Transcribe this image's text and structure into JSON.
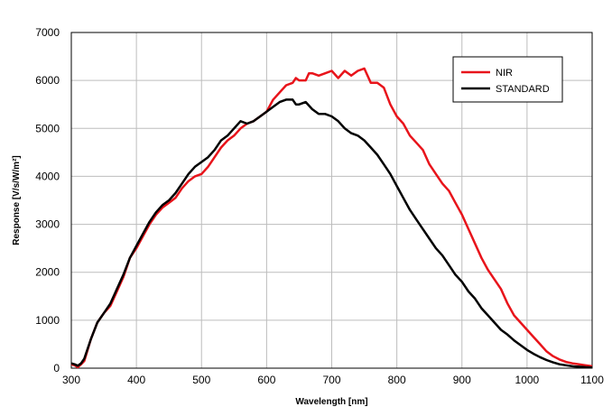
{
  "chart_data": {
    "type": "line",
    "title": "",
    "xlabel": "Wavelength [nm]",
    "ylabel": "Response [V/s/W/m²]",
    "xlim": [
      300,
      1100
    ],
    "ylim": [
      0,
      7000
    ],
    "x_ticks": [
      "300",
      "400",
      "500",
      "600",
      "700",
      "800",
      "900",
      "1000",
      "1100"
    ],
    "y_ticks": [
      "0",
      "1000",
      "2000",
      "3000",
      "4000",
      "5000",
      "6000",
      "7000"
    ],
    "grid": true,
    "legend_position": "top-right",
    "series": [
      {
        "name": "NIR",
        "color": "#e8141b",
        "x": [
          300,
          305,
          310,
          315,
          320,
          330,
          340,
          350,
          360,
          370,
          380,
          390,
          400,
          410,
          420,
          430,
          440,
          450,
          460,
          470,
          480,
          490,
          500,
          510,
          520,
          530,
          540,
          550,
          560,
          570,
          580,
          590,
          600,
          610,
          620,
          630,
          640,
          645,
          650,
          660,
          665,
          670,
          680,
          690,
          700,
          710,
          720,
          730,
          740,
          750,
          760,
          770,
          780,
          790,
          800,
          810,
          820,
          830,
          840,
          850,
          860,
          870,
          880,
          890,
          900,
          910,
          920,
          930,
          940,
          950,
          960,
          970,
          980,
          990,
          1000,
          1010,
          1020,
          1030,
          1040,
          1050,
          1060,
          1070,
          1080,
          1090,
          1100
        ],
        "y": [
          80,
          60,
          20,
          80,
          150,
          600,
          950,
          1150,
          1300,
          1600,
          1900,
          2300,
          2500,
          2750,
          3000,
          3200,
          3350,
          3450,
          3550,
          3750,
          3900,
          4000,
          4050,
          4200,
          4400,
          4600,
          4750,
          4850,
          5000,
          5100,
          5150,
          5250,
          5350,
          5600,
          5750,
          5900,
          5950,
          6050,
          6000,
          6000,
          6150,
          6150,
          6100,
          6150,
          6200,
          6050,
          6200,
          6100,
          6200,
          6250,
          5950,
          5950,
          5850,
          5500,
          5250,
          5100,
          4850,
          4700,
          4550,
          4250,
          4050,
          3850,
          3700,
          3450,
          3200,
          2900,
          2600,
          2300,
          2050,
          1850,
          1650,
          1350,
          1100,
          950,
          800,
          650,
          500,
          350,
          250,
          180,
          130,
          100,
          80,
          60,
          40
        ]
      },
      {
        "name": "STANDARD",
        "color": "#000000",
        "x": [
          300,
          305,
          310,
          315,
          320,
          330,
          340,
          350,
          360,
          370,
          380,
          390,
          400,
          410,
          420,
          430,
          440,
          450,
          460,
          470,
          480,
          490,
          500,
          510,
          520,
          530,
          540,
          550,
          560,
          570,
          580,
          590,
          600,
          610,
          620,
          630,
          640,
          645,
          650,
          660,
          670,
          680,
          690,
          700,
          710,
          720,
          730,
          740,
          750,
          760,
          770,
          780,
          790,
          800,
          810,
          820,
          830,
          840,
          850,
          860,
          870,
          880,
          890,
          900,
          910,
          920,
          930,
          940,
          950,
          960,
          970,
          980,
          990,
          1000,
          1010,
          1020,
          1030,
          1040,
          1050,
          1060,
          1070,
          1080,
          1090,
          1100
        ],
        "y": [
          100,
          80,
          50,
          100,
          200,
          600,
          950,
          1150,
          1350,
          1650,
          1950,
          2300,
          2550,
          2800,
          3050,
          3250,
          3400,
          3500,
          3650,
          3850,
          4050,
          4200,
          4300,
          4400,
          4550,
          4750,
          4850,
          5000,
          5150,
          5100,
          5150,
          5250,
          5350,
          5450,
          5550,
          5600,
          5600,
          5500,
          5500,
          5550,
          5400,
          5300,
          5300,
          5250,
          5150,
          5000,
          4900,
          4850,
          4750,
          4600,
          4450,
          4250,
          4050,
          3800,
          3550,
          3300,
          3100,
          2900,
          2700,
          2500,
          2350,
          2150,
          1950,
          1800,
          1600,
          1450,
          1250,
          1100,
          950,
          800,
          700,
          580,
          480,
          380,
          300,
          230,
          170,
          120,
          80,
          60,
          40,
          30,
          20,
          15
        ]
      }
    ]
  }
}
